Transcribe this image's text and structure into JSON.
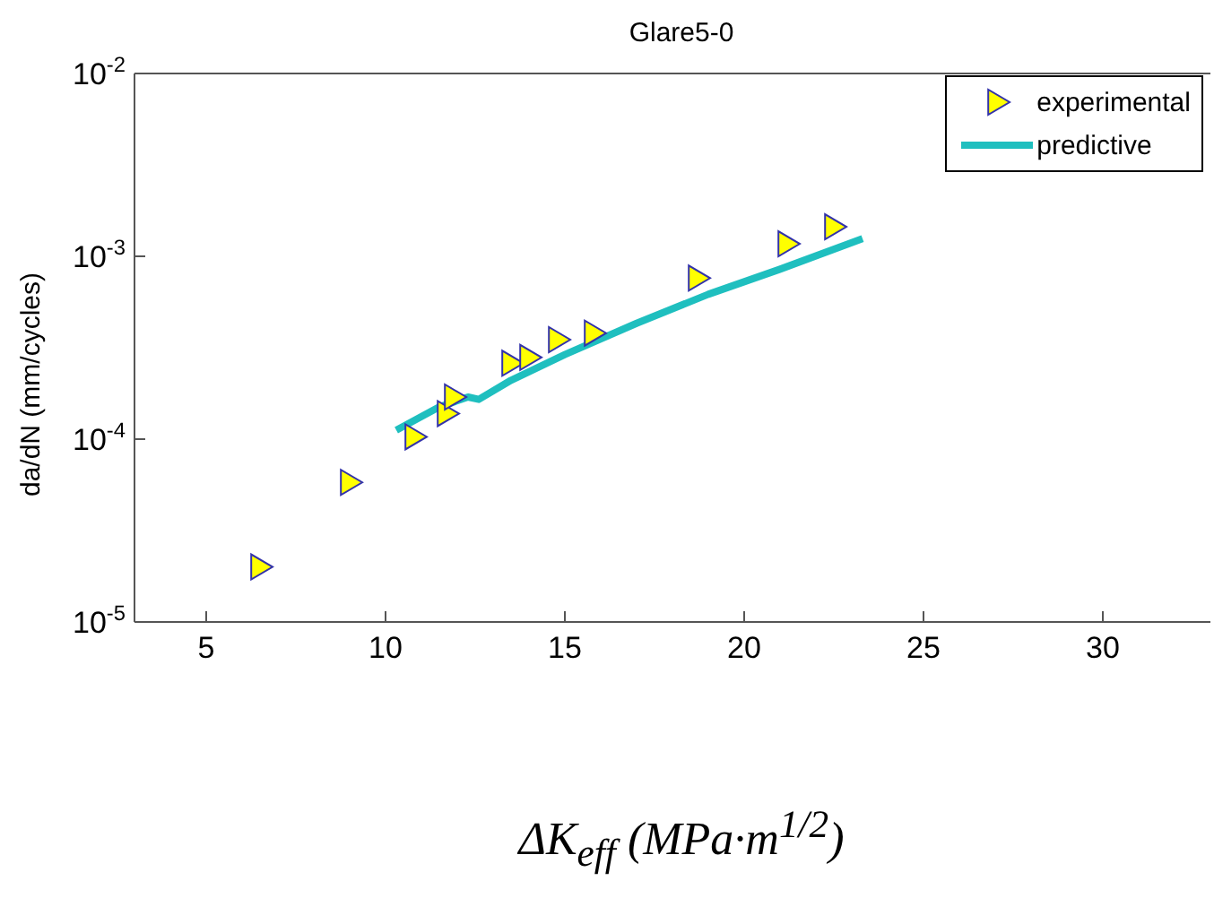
{
  "chart_data": {
    "type": "scatter",
    "title": "Glare5-0",
    "xlabel": "ΔK$_{eff}$ (MPa·m$^{1/2}$)",
    "ylabel": "da/dN (mm/cycles)",
    "log": "y",
    "xlim": [
      3,
      33
    ],
    "xticks": [
      5,
      10,
      15,
      20,
      25,
      30
    ],
    "ylim": [
      1e-05,
      0.01
    ],
    "yticks": [
      {
        "value": 1e-05,
        "label": "10$^{-5}$"
      },
      {
        "value": 0.0001,
        "label": "10$^{-4}$"
      },
      {
        "value": 0.001,
        "label": "10$^{-3}$"
      },
      {
        "value": 0.01,
        "label": "10$^{-2}$"
      }
    ],
    "legend": "top right",
    "series": [
      {
        "name": "experimental",
        "marker": "triangle",
        "color": "#ffff00",
        "x": [
          6.5,
          9,
          10.8,
          11.7,
          11.9,
          13.5,
          14.0,
          14.8,
          15.8,
          18.7,
          21.2,
          22.5
        ],
        "values": [
          2e-05,
          5.8e-05,
          0.000103,
          0.000138,
          0.00017,
          0.00026,
          0.00028,
          0.00035,
          0.00038,
          0.00076,
          0.00117,
          0.00145
        ]
      },
      {
        "name": "predictive",
        "type": "line",
        "marker": "none",
        "color": "#1fbfbf",
        "x": [
          10.3,
          11.5,
          12.3,
          12.6,
          13.5,
          15,
          17,
          19,
          21,
          23.3
        ],
        "values": [
          0.000112,
          0.00015,
          0.00017,
          0.000165,
          0.00021,
          0.00029,
          0.00043,
          0.00062,
          0.00085,
          0.00125
        ]
      }
    ]
  }
}
